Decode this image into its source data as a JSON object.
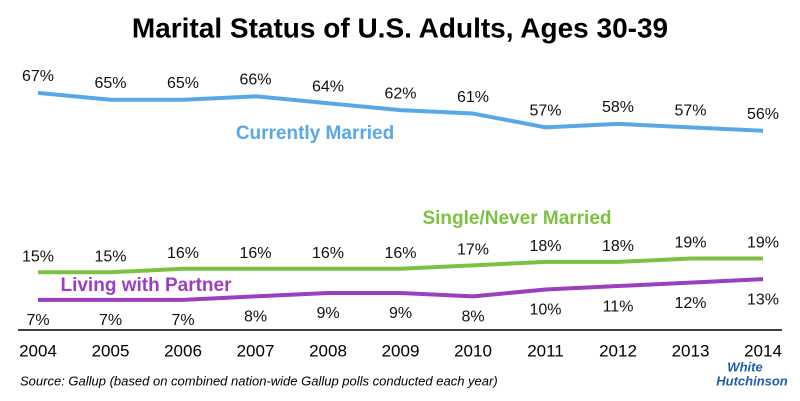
{
  "chart_data": {
    "type": "line",
    "title": "Marital Status of U.S. Adults, Ages 30-39",
    "categories": [
      "2004",
      "2005",
      "2006",
      "2007",
      "2008",
      "2009",
      "2010",
      "2011",
      "2012",
      "2013",
      "2014"
    ],
    "series": [
      {
        "name": "Currently Married",
        "color": "#58a8e8",
        "values": [
          67,
          65,
          65,
          66,
          64,
          62,
          61,
          57,
          58,
          57,
          56
        ],
        "value_labels": [
          "67%",
          "65%",
          "65%",
          "66%",
          "64%",
          "62%",
          "61%",
          "57%",
          "58%",
          "57%",
          "56%"
        ]
      },
      {
        "name": "Single/Never Married",
        "color": "#7cc242",
        "values": [
          15,
          15,
          16,
          16,
          16,
          16,
          17,
          18,
          18,
          19,
          19
        ],
        "value_labels": [
          "15%",
          "15%",
          "16%",
          "16%",
          "16%",
          "16%",
          "17%",
          "18%",
          "18%",
          "19%",
          "19%"
        ]
      },
      {
        "name": "Living with Partner",
        "color": "#9b3fbf",
        "values": [
          7,
          7,
          7,
          8,
          9,
          9,
          8,
          10,
          11,
          12,
          13
        ],
        "value_labels": [
          "7%",
          "7%",
          "7%",
          "8%",
          "9%",
          "9%",
          "8%",
          "10%",
          "11%",
          "12%",
          "13%"
        ]
      }
    ],
    "source": "Source: Gallup (based on combined nation-wide Gallup polls conducted each year)",
    "logo": [
      "White",
      "Hutchinson"
    ]
  }
}
